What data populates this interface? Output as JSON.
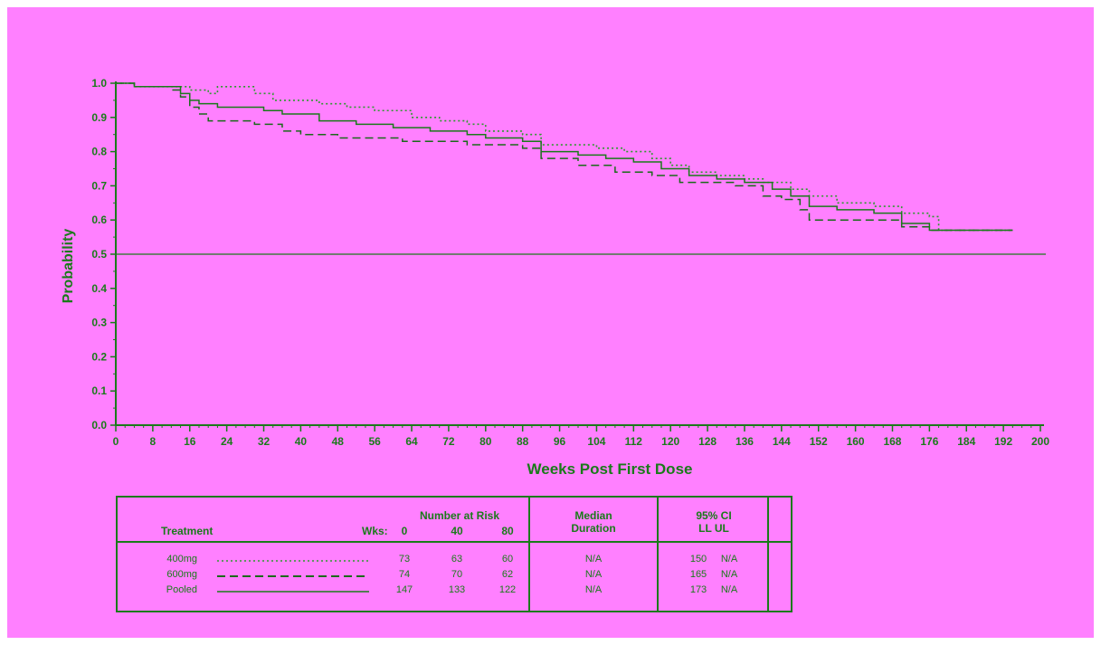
{
  "colors": {
    "background": "#ff80ff",
    "ink": "#1a7a1a",
    "series_400mg": "#2e9a2e",
    "series_600mg": "#1a6a1a",
    "series_pooled": "#1a7a1a"
  },
  "chart_data": {
    "type": "line",
    "xlabel": "Weeks Post First Dose",
    "ylabel": "Probability",
    "xlim": [
      0,
      200
    ],
    "ylim": [
      0,
      1
    ],
    "x_ticks": [
      "0",
      "8",
      "16",
      "24",
      "32",
      "40",
      "48",
      "56",
      "64",
      "72",
      "80",
      "88",
      "96",
      "104",
      "112",
      "120",
      "128",
      "136",
      "144",
      "152",
      "160",
      "168",
      "176",
      "184",
      "192",
      "200"
    ],
    "y_ticks": [
      "0.0",
      "0.1",
      "0.2",
      "0.3",
      "0.4",
      "0.5",
      "0.6",
      "0.7",
      "0.8",
      "0.9",
      "1.0"
    ],
    "reference_line": 0.5,
    "series": [
      {
        "name": "400mg",
        "style": "dotted",
        "points": [
          [
            0,
            1.0
          ],
          [
            4,
            0.99
          ],
          [
            12,
            0.99
          ],
          [
            16,
            0.98
          ],
          [
            20,
            0.97
          ],
          [
            22,
            0.99
          ],
          [
            30,
            0.97
          ],
          [
            34,
            0.95
          ],
          [
            44,
            0.94
          ],
          [
            50,
            0.93
          ],
          [
            56,
            0.92
          ],
          [
            64,
            0.9
          ],
          [
            70,
            0.89
          ],
          [
            76,
            0.88
          ],
          [
            80,
            0.86
          ],
          [
            88,
            0.85
          ],
          [
            92,
            0.82
          ],
          [
            98,
            0.82
          ],
          [
            104,
            0.81
          ],
          [
            110,
            0.8
          ],
          [
            116,
            0.78
          ],
          [
            120,
            0.76
          ],
          [
            124,
            0.74
          ],
          [
            130,
            0.73
          ],
          [
            136,
            0.72
          ],
          [
            140,
            0.71
          ],
          [
            146,
            0.69
          ],
          [
            150,
            0.67
          ],
          [
            156,
            0.65
          ],
          [
            164,
            0.64
          ],
          [
            170,
            0.62
          ],
          [
            176,
            0.61
          ],
          [
            178,
            0.57
          ],
          [
            194,
            0.57
          ]
        ]
      },
      {
        "name": "600mg",
        "style": "dashed",
        "points": [
          [
            0,
            1.0
          ],
          [
            4,
            0.99
          ],
          [
            12,
            0.98
          ],
          [
            14,
            0.96
          ],
          [
            16,
            0.93
          ],
          [
            18,
            0.91
          ],
          [
            20,
            0.89
          ],
          [
            30,
            0.88
          ],
          [
            36,
            0.86
          ],
          [
            40,
            0.85
          ],
          [
            48,
            0.84
          ],
          [
            56,
            0.84
          ],
          [
            62,
            0.83
          ],
          [
            70,
            0.83
          ],
          [
            76,
            0.82
          ],
          [
            84,
            0.82
          ],
          [
            88,
            0.81
          ],
          [
            92,
            0.78
          ],
          [
            100,
            0.76
          ],
          [
            108,
            0.74
          ],
          [
            116,
            0.73
          ],
          [
            122,
            0.71
          ],
          [
            130,
            0.71
          ],
          [
            134,
            0.7
          ],
          [
            140,
            0.67
          ],
          [
            144,
            0.66
          ],
          [
            148,
            0.63
          ],
          [
            150,
            0.6
          ],
          [
            164,
            0.6
          ],
          [
            170,
            0.58
          ],
          [
            176,
            0.57
          ],
          [
            194,
            0.57
          ]
        ]
      },
      {
        "name": "Pooled",
        "style": "solid",
        "points": [
          [
            0,
            1.0
          ],
          [
            4,
            0.99
          ],
          [
            12,
            0.99
          ],
          [
            14,
            0.97
          ],
          [
            16,
            0.95
          ],
          [
            18,
            0.94
          ],
          [
            22,
            0.93
          ],
          [
            32,
            0.92
          ],
          [
            36,
            0.91
          ],
          [
            44,
            0.89
          ],
          [
            52,
            0.88
          ],
          [
            60,
            0.87
          ],
          [
            68,
            0.86
          ],
          [
            76,
            0.85
          ],
          [
            80,
            0.84
          ],
          [
            88,
            0.83
          ],
          [
            92,
            0.8
          ],
          [
            100,
            0.79
          ],
          [
            106,
            0.78
          ],
          [
            112,
            0.77
          ],
          [
            118,
            0.75
          ],
          [
            124,
            0.73
          ],
          [
            130,
            0.72
          ],
          [
            136,
            0.71
          ],
          [
            142,
            0.69
          ],
          [
            146,
            0.67
          ],
          [
            150,
            0.64
          ],
          [
            156,
            0.63
          ],
          [
            164,
            0.62
          ],
          [
            170,
            0.59
          ],
          [
            176,
            0.57
          ],
          [
            194,
            0.57
          ]
        ]
      }
    ]
  },
  "risk_table": {
    "treatment_header": "Treatment",
    "wks_header": "Wks:",
    "number_at_risk_header": "Number at Risk",
    "time_points": [
      "0",
      "40",
      "80"
    ],
    "median_header_line1": "Median",
    "median_header_line2": "Duration",
    "ci_header_line1": "95% CI",
    "ci_header_line2": "LL UL",
    "rows": [
      {
        "name": "400mg",
        "style": "dotted",
        "n": [
          "73",
          "63",
          "60"
        ],
        "median": "N/A",
        "ll": "150",
        "ul": "N/A"
      },
      {
        "name": "600mg",
        "style": "dashed",
        "n": [
          "74",
          "70",
          "62"
        ],
        "median": "N/A",
        "ll": "165",
        "ul": "N/A"
      },
      {
        "name": "Pooled",
        "style": "solid",
        "n": [
          "147",
          "133",
          "122"
        ],
        "median": "N/A",
        "ll": "173",
        "ul": "N/A"
      }
    ]
  }
}
